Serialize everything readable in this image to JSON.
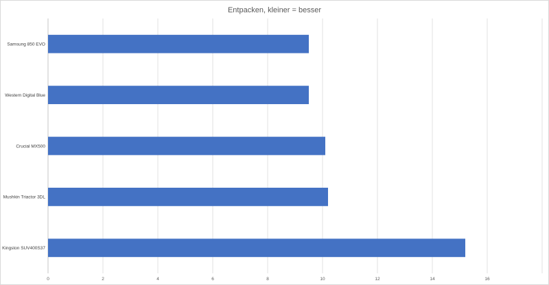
{
  "chart_data": {
    "type": "bar",
    "orientation": "horizontal",
    "title": "Entpacken, kleiner = besser",
    "xlabel": "",
    "ylabel": "",
    "categories": [
      "Samsung 850 EVO",
      "Western Digital Blue",
      "Crucial MX500",
      "Mushkin Triactor 3DL",
      "Kingston SUV400S37"
    ],
    "values": [
      9.5,
      9.5,
      10.1,
      10.2,
      15.2
    ],
    "xlim": [
      0,
      18
    ],
    "xticks": [
      "0",
      "2",
      "4",
      "6",
      "8",
      "10",
      "12",
      "14",
      "16"
    ],
    "grid": true,
    "legend": "none",
    "bar_color": "#4472c4",
    "grid_color": "#d9d9d9"
  }
}
